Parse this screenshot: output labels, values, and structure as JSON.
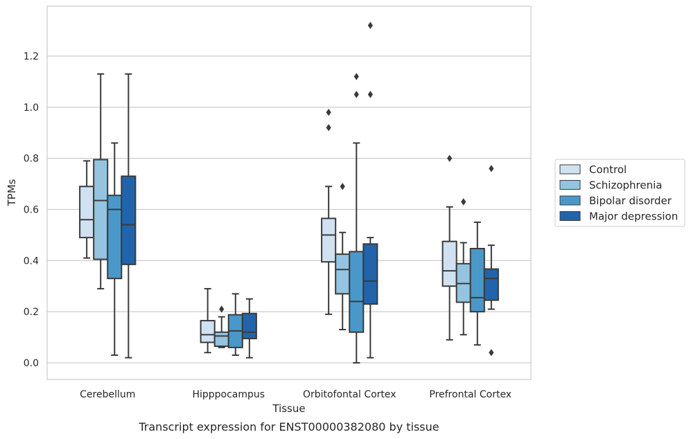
{
  "chart_data": {
    "type": "box",
    "xlabel": "Tissue",
    "ylabel": "TPMs",
    "caption": "Transcript expression for ENST00000382080 by tissue",
    "ylim": [
      -0.065,
      1.395
    ],
    "yticks": [
      "0.0",
      "0.2",
      "0.4",
      "0.6",
      "0.8",
      "1.0",
      "1.2"
    ],
    "grid": "horizontal",
    "legend_position": "right",
    "categories": [
      "Cerebellum",
      "Hipppocampus",
      "Orbitofontal Cortex",
      "Prefrontal Cortex"
    ],
    "series": [
      {
        "name": "Control",
        "color": "#d0e1f2",
        "boxes": [
          {
            "whislo": 0.41,
            "q1": 0.49,
            "med": 0.56,
            "q3": 0.69,
            "whishi": 0.79,
            "fliers": []
          },
          {
            "whislo": 0.04,
            "q1": 0.08,
            "med": 0.11,
            "q3": 0.165,
            "whishi": 0.29,
            "fliers": []
          },
          {
            "whislo": 0.19,
            "q1": 0.395,
            "med": 0.5,
            "q3": 0.565,
            "whishi": 0.69,
            "fliers": [
              0.92,
              0.98
            ]
          },
          {
            "whislo": 0.09,
            "q1": 0.3,
            "med": 0.36,
            "q3": 0.475,
            "whishi": 0.61,
            "fliers": [
              0.8
            ]
          }
        ]
      },
      {
        "name": "Schizophrenia",
        "color": "#94c4df",
        "boxes": [
          {
            "whislo": 0.29,
            "q1": 0.405,
            "med": 0.635,
            "q3": 0.795,
            "whishi": 1.13,
            "fliers": []
          },
          {
            "whislo": 0.06,
            "q1": 0.065,
            "med": 0.105,
            "q3": 0.12,
            "whishi": 0.18,
            "fliers": [
              0.21
            ]
          },
          {
            "whislo": 0.13,
            "q1": 0.27,
            "med": 0.365,
            "q3": 0.425,
            "whishi": 0.51,
            "fliers": [
              0.69
            ]
          },
          {
            "whislo": 0.11,
            "q1": 0.237,
            "med": 0.31,
            "q3": 0.388,
            "whishi": 0.47,
            "fliers": [
              0.63
            ]
          }
        ]
      },
      {
        "name": "Bipolar disorder",
        "color": "#4a98c9",
        "boxes": [
          {
            "whislo": 0.03,
            "q1": 0.33,
            "med": 0.6,
            "q3": 0.655,
            "whishi": 0.86,
            "fliers": []
          },
          {
            "whislo": 0.03,
            "q1": 0.06,
            "med": 0.125,
            "q3": 0.188,
            "whishi": 0.27,
            "fliers": []
          },
          {
            "whislo": 0.0,
            "q1": 0.12,
            "med": 0.24,
            "q3": 0.435,
            "whishi": 0.86,
            "fliers": [
              1.05,
              1.12
            ]
          },
          {
            "whislo": 0.07,
            "q1": 0.2,
            "med": 0.255,
            "q3": 0.447,
            "whishi": 0.55,
            "fliers": []
          }
        ]
      },
      {
        "name": "Major depression",
        "color": "#2264ab",
        "boxes": [
          {
            "whislo": 0.02,
            "q1": 0.385,
            "med": 0.54,
            "q3": 0.73,
            "whishi": 1.13,
            "fliers": []
          },
          {
            "whislo": 0.02,
            "q1": 0.095,
            "med": 0.12,
            "q3": 0.193,
            "whishi": 0.25,
            "fliers": []
          },
          {
            "whislo": 0.02,
            "q1": 0.23,
            "med": 0.32,
            "q3": 0.465,
            "whishi": 0.49,
            "fliers": [
              1.05,
              1.32
            ]
          },
          {
            "whislo": 0.21,
            "q1": 0.245,
            "med": 0.33,
            "q3": 0.367,
            "whishi": 0.46,
            "fliers": [
              0.04,
              0.76
            ]
          }
        ]
      }
    ]
  }
}
